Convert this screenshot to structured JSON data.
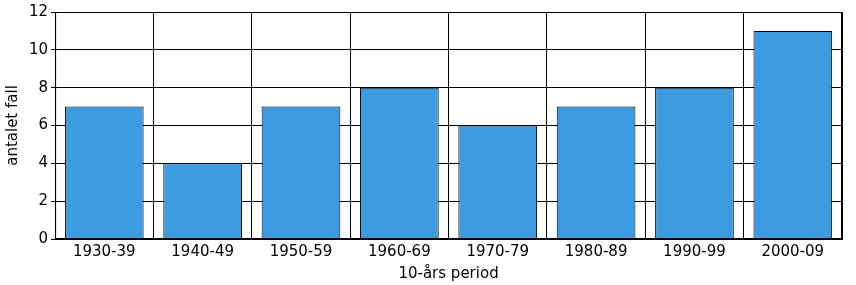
{
  "chart_data": {
    "type": "bar",
    "x_label": "10-års period",
    "y_label": "antalet fall",
    "categories": [
      "1930-39",
      "1940-49",
      "1950-59",
      "1960-69",
      "1970-79",
      "1980-89",
      "1990-99",
      "2000-09"
    ],
    "values": [
      7,
      4,
      7,
      8,
      6,
      7,
      8,
      11
    ],
    "color": "#3d9be0",
    "ylim": [
      0,
      12
    ],
    "yticks": [
      0,
      2,
      4,
      6,
      8,
      10,
      12
    ],
    "grid": true
  }
}
